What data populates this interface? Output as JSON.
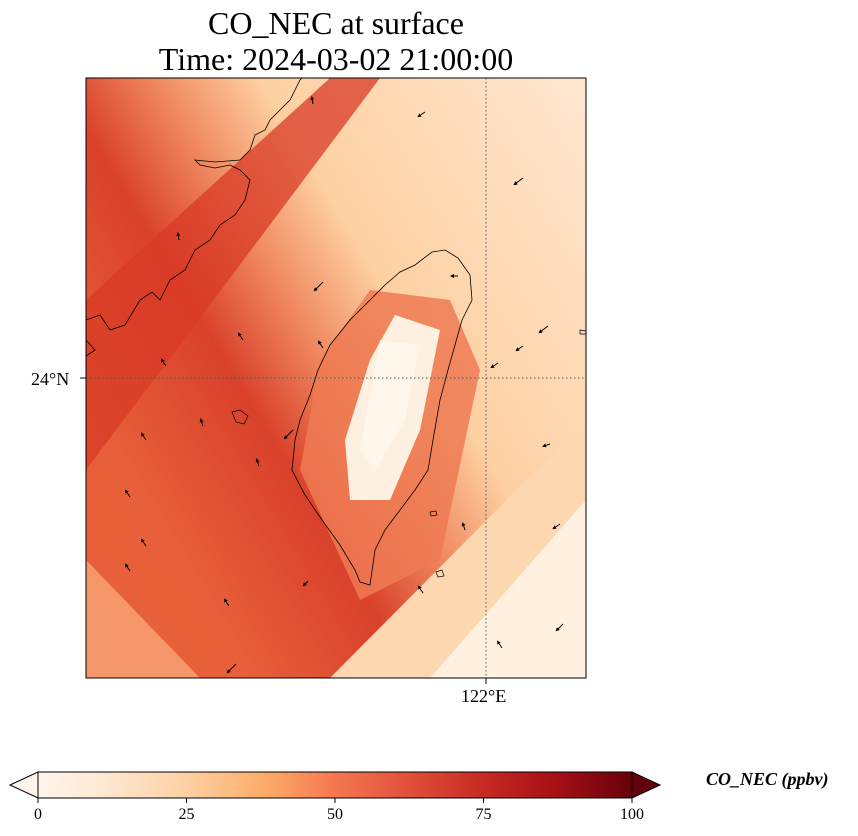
{
  "title_line1": "CO_NEC at surface",
  "title_line2": "Time: 2024-03-02 21:00:00",
  "lat_label": "24°N",
  "lon_label": "122°E",
  "colorbar": {
    "label": "CO_NEC (ppbv)",
    "ticks": [
      "0",
      "25",
      "50",
      "75",
      "100"
    ],
    "min": 0,
    "max": 100,
    "colormap": [
      "#fff5eb",
      "#fee6ce",
      "#fdd0a2",
      "#fdae6b",
      "#fd8d3c",
      "#f16913",
      "#d94801",
      "#a63603",
      "#7f2704"
    ],
    "extend": "both"
  },
  "map": {
    "gridlines": "dotted",
    "features": [
      "coastline-taiwan",
      "coastline-china",
      "wind-vectors"
    ]
  }
}
